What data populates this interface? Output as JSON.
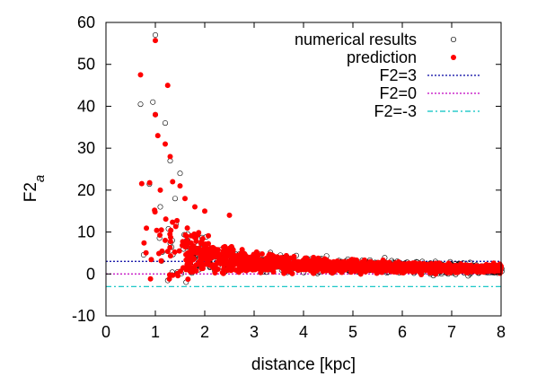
{
  "chart_data": {
    "type": "scatter",
    "xlabel": "distance [kpc]",
    "ylabel_main": "F2",
    "ylabel_sub": "a",
    "xlim": [
      0,
      8
    ],
    "ylim": [
      -10,
      60
    ],
    "x_ticks": [
      0,
      1,
      2,
      3,
      4,
      5,
      6,
      7,
      8
    ],
    "y_ticks": [
      -10,
      0,
      10,
      20,
      30,
      40,
      50,
      60
    ],
    "grid": false,
    "legend_position": "top-right",
    "series": [
      {
        "name": "numerical results",
        "marker": "open-circle",
        "color": "#000000"
      },
      {
        "name": "prediction",
        "marker": "filled-circle",
        "color": "#ff0000"
      },
      {
        "name": "F2=3",
        "style": "dotted",
        "color": "#0000a0",
        "y": 3
      },
      {
        "name": "F2=0",
        "style": "dotted",
        "color": "#c000c0",
        "y": 0
      },
      {
        "name": "F2=-3",
        "style": "dash-dot",
        "color": "#00c0c0",
        "y": -3
      }
    ],
    "highlight_points": {
      "numerical": [
        [
          1.0,
          57
        ],
        [
          0.95,
          41
        ],
        [
          1.0,
          38
        ],
        [
          0.7,
          40.5
        ],
        [
          1.2,
          36
        ],
        [
          1.3,
          27
        ],
        [
          1.5,
          24
        ],
        [
          1.1,
          16
        ],
        [
          1.4,
          18
        ]
      ],
      "prediction": [
        [
          1.0,
          55.7
        ],
        [
          0.7,
          47.5
        ],
        [
          1.25,
          45
        ],
        [
          1.0,
          38
        ],
        [
          1.05,
          33
        ],
        [
          1.2,
          31
        ],
        [
          1.3,
          28
        ],
        [
          1.35,
          22
        ],
        [
          1.5,
          21
        ],
        [
          1.6,
          18
        ],
        [
          1.8,
          16
        ],
        [
          2.0,
          15
        ],
        [
          2.5,
          14
        ],
        [
          1.1,
          20
        ],
        [
          1.2,
          8
        ]
      ]
    },
    "cloud_envelope": {
      "x_range": [
        0.7,
        8.0
      ],
      "center_decay": 7.5,
      "spread_decay": 13,
      "description_points": 1600
    }
  }
}
